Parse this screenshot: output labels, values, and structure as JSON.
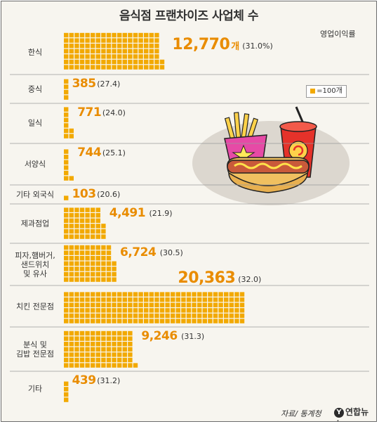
{
  "title": "음식점 프랜차이즈 사업체 수",
  "legend": {
    "label": "=100개"
  },
  "margin_header": "영업이익률",
  "source": "자료/ 통계청",
  "logo": {
    "mark": "Y",
    "text": "연합뉴스"
  },
  "colors": {
    "square": "#f2a900",
    "value": "#e98c00",
    "divider": "#9a9a9a"
  },
  "chart_data": {
    "type": "bar",
    "title": "음식점 프랜차이즈 사업체 수",
    "unit": "개",
    "icon_unit": 100,
    "categories": [
      "한식",
      "중식",
      "일식",
      "서양식",
      "기타 외국식",
      "제과점업",
      "피자,햄버거, 샌드위치 및 유사",
      "치킨 전문점",
      "분식 및 김밥 전문점",
      "기타"
    ],
    "category_lines": [
      [
        "한식"
      ],
      [
        "중식"
      ],
      [
        "일식"
      ],
      [
        "서양식"
      ],
      [
        "기타 외국식"
      ],
      [
        "제과점업"
      ],
      [
        "피자,햄버거,",
        "샌드위치",
        "및 유사"
      ],
      [
        "치킨 전문점"
      ],
      [
        "분식 및",
        "김밥 전문점"
      ],
      [
        "기타"
      ]
    ],
    "series": [
      {
        "name": "사업체 수",
        "values": [
          12770,
          385,
          771,
          744,
          103,
          4491,
          6724,
          20363,
          9246,
          439
        ]
      },
      {
        "name": "영업이익률",
        "values": [
          31.0,
          27.4,
          24.0,
          25.1,
          20.6,
          21.9,
          30.5,
          32.0,
          31.3,
          31.2
        ]
      }
    ],
    "value_labels": [
      "12,770",
      "385",
      "771",
      "744",
      "103",
      "4,491",
      "6,724",
      "20,363",
      "9,246",
      "439"
    ],
    "value_suffixes": [
      "개",
      "",
      "",
      "",
      "",
      "",
      "",
      "",
      "",
      ""
    ],
    "margin_labels": [
      "(31.0%)",
      "(27.4)",
      "(24.0)",
      "(25.1)",
      "(20.6)",
      "(21.9)",
      "(30.5)",
      "(32.0)",
      "(31.3)",
      "(31.2)"
    ]
  }
}
